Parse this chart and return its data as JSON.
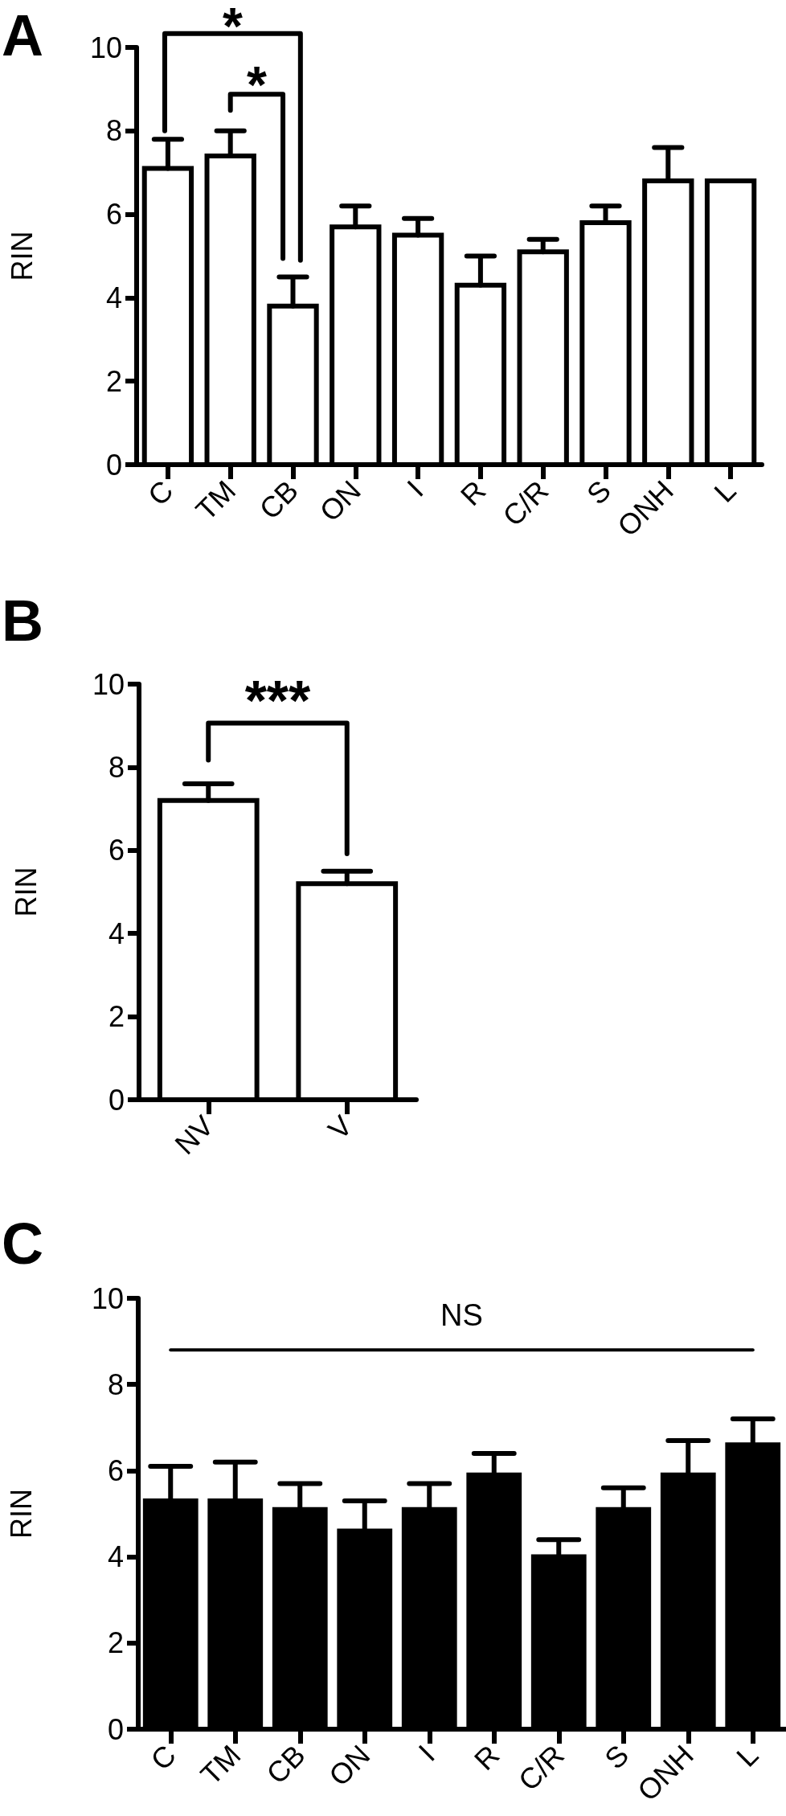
{
  "chart_data": [
    {
      "type": "bar",
      "title": "A",
      "ylabel": "RIN",
      "categories": [
        "C",
        "TM",
        "CB",
        "ON",
        "I",
        "R",
        "C/R",
        "S",
        "ONH",
        "L"
      ],
      "values": [
        7.1,
        7.4,
        3.8,
        5.7,
        5.5,
        4.3,
        5.1,
        5.8,
        6.8,
        6.8
      ],
      "color": "#ffffff",
      "errors": [
        [
          7.1,
          7.8
        ],
        [
          7.4,
          8.0
        ],
        [
          3.8,
          4.5
        ],
        [
          5.7,
          6.2
        ],
        [
          5.5,
          5.9
        ],
        [
          4.3,
          5.0
        ],
        [
          5.1,
          5.4
        ],
        [
          5.8,
          6.2
        ],
        [
          6.8,
          7.6
        ],
        [
          6.8,
          6.8
        ]
      ],
      "ylim": [
        0,
        10
      ],
      "yticks": [
        0,
        2,
        4,
        6,
        8,
        10
      ],
      "annotations": [
        "*",
        "*"
      ]
    },
    {
      "type": "bar",
      "title": "B",
      "ylabel": "RIN",
      "categories": [
        "NV",
        "V"
      ],
      "values": [
        7.2,
        5.2
      ],
      "color": "#ffffff",
      "errors": [
        [
          7.2,
          7.6
        ],
        [
          5.2,
          5.5
        ]
      ],
      "ylim": [
        0,
        10
      ],
      "yticks": [
        0,
        2,
        4,
        6,
        8,
        10
      ],
      "annotations": [
        "***"
      ]
    },
    {
      "type": "bar",
      "title": "C",
      "ylabel": "RIN",
      "categories": [
        "C",
        "TM",
        "CB",
        "ON",
        "I",
        "R",
        "C/R",
        "S",
        "ONH",
        "L"
      ],
      "values": [
        5.3,
        5.3,
        5.1,
        4.6,
        5.1,
        5.9,
        4.0,
        5.1,
        5.9,
        6.6
      ],
      "color": "#000000",
      "errors": [
        [
          5.3,
          6.1
        ],
        [
          5.3,
          6.2
        ],
        [
          5.1,
          5.7
        ],
        [
          4.6,
          5.3
        ],
        [
          5.1,
          5.7
        ],
        [
          5.9,
          6.4
        ],
        [
          4.0,
          4.4
        ],
        [
          5.1,
          5.6
        ],
        [
          5.9,
          6.7
        ],
        [
          6.6,
          7.2
        ]
      ],
      "ylim": [
        0,
        10
      ],
      "yticks": [
        0,
        2,
        4,
        6,
        8,
        10
      ],
      "annotations": [
        "NS"
      ]
    }
  ]
}
